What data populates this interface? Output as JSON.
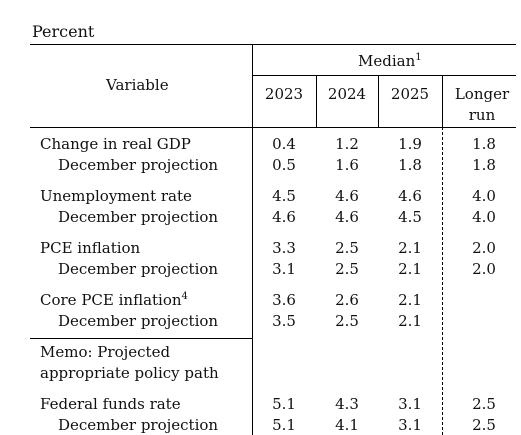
{
  "unit_label": "Percent",
  "header": {
    "variable_label": "Variable",
    "median_label": "Median",
    "median_footnote": "1",
    "columns": [
      "2023",
      "2024",
      "2025",
      "Longer",
      "run"
    ]
  },
  "rows": [
    {
      "label": "Change in real GDP",
      "values": [
        "0.4",
        "1.2",
        "1.9",
        "1.8"
      ]
    },
    {
      "label": "December projection",
      "values": [
        "0.5",
        "1.6",
        "1.8",
        "1.8"
      ]
    },
    {
      "label": "Unemployment rate",
      "values": [
        "4.5",
        "4.6",
        "4.6",
        "4.0"
      ]
    },
    {
      "label": "December projection",
      "values": [
        "4.6",
        "4.6",
        "4.5",
        "4.0"
      ]
    },
    {
      "label": "PCE inflation",
      "values": [
        "3.3",
        "2.5",
        "2.1",
        "2.0"
      ]
    },
    {
      "label": "December projection",
      "values": [
        "3.1",
        "2.5",
        "2.1",
        "2.0"
      ]
    },
    {
      "label": "Core PCE inflation",
      "footnote": "4",
      "values": [
        "3.6",
        "2.6",
        "2.1",
        ""
      ]
    },
    {
      "label": "December projection",
      "values": [
        "3.5",
        "2.5",
        "2.1",
        ""
      ]
    },
    {
      "label": "Federal funds rate",
      "values": [
        "5.1",
        "4.3",
        "3.1",
        "2.5"
      ]
    },
    {
      "label": "December projection",
      "values": [
        "5.1",
        "4.1",
        "3.1",
        "2.5"
      ]
    }
  ],
  "memo": {
    "line1": "Memo: Projected",
    "line2": "appropriate policy path"
  }
}
